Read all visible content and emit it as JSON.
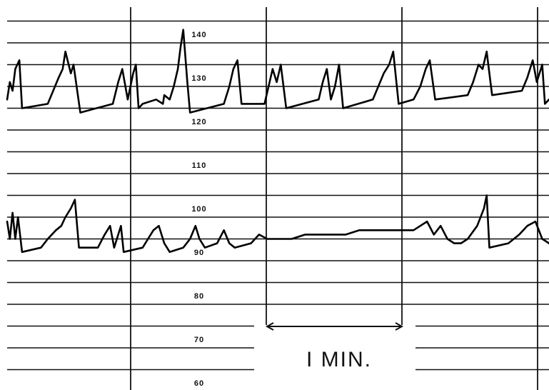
{
  "chart_data": {
    "type": "line",
    "y_tick_labels": [
      "140",
      "130",
      "120",
      "110",
      "100",
      "90",
      "80",
      "70",
      "60"
    ],
    "y_ticks": [
      140,
      130,
      120,
      110,
      100,
      90,
      80,
      70,
      60
    ],
    "ylim": [
      60,
      142
    ],
    "scale_bar": {
      "label": "I MIN.",
      "duration_min": 1
    },
    "series": [
      {
        "points": [
          [
            0.0,
            127
          ],
          [
            0.02,
            131
          ],
          [
            0.04,
            129
          ],
          [
            0.06,
            134
          ],
          [
            0.09,
            136
          ],
          [
            0.11,
            125
          ],
          [
            0.3,
            126
          ],
          [
            0.38,
            132
          ],
          [
            0.41,
            134
          ],
          [
            0.43,
            138
          ],
          [
            0.47,
            133
          ],
          [
            0.49,
            135
          ],
          [
            0.54,
            124
          ],
          [
            0.78,
            126
          ],
          [
            0.82,
            131
          ],
          [
            0.85,
            134
          ],
          [
            0.89,
            127
          ],
          [
            0.93,
            133
          ],
          [
            0.95,
            135
          ],
          [
            0.97,
            125
          ],
          [
            1.0,
            126
          ],
          [
            1.1,
            127
          ],
          [
            1.15,
            126
          ],
          [
            1.16,
            128
          ],
          [
            1.2,
            127
          ],
          [
            1.23,
            130
          ],
          [
            1.26,
            134
          ],
          [
            1.28,
            139
          ],
          [
            1.3,
            143
          ],
          [
            1.33,
            131
          ],
          [
            1.35,
            124
          ],
          [
            1.6,
            126
          ],
          [
            1.64,
            130
          ],
          [
            1.67,
            134
          ],
          [
            1.7,
            136
          ],
          [
            1.73,
            126
          ],
          [
            1.9,
            126
          ],
          [
            1.93,
            130
          ],
          [
            1.96,
            134
          ],
          [
            1.99,
            131
          ],
          [
            2.02,
            135
          ],
          [
            2.06,
            125
          ],
          [
            2.3,
            127
          ],
          [
            2.33,
            131
          ],
          [
            2.36,
            134
          ],
          [
            2.39,
            127
          ],
          [
            2.42,
            130
          ],
          [
            2.45,
            135
          ],
          [
            2.48,
            125
          ],
          [
            2.7,
            127
          ],
          [
            2.74,
            130
          ],
          [
            2.78,
            133
          ],
          [
            2.82,
            135
          ],
          [
            2.85,
            138
          ],
          [
            2.89,
            126
          ],
          [
            3.0,
            127
          ],
          [
            3.05,
            130
          ],
          [
            3.09,
            134
          ],
          [
            3.12,
            136
          ],
          [
            3.16,
            127
          ],
          [
            3.4,
            128
          ],
          [
            3.44,
            131
          ],
          [
            3.48,
            135
          ],
          [
            3.51,
            134
          ],
          [
            3.54,
            138
          ],
          [
            3.58,
            128
          ],
          [
            3.8,
            129
          ],
          [
            3.84,
            132
          ],
          [
            3.88,
            136
          ],
          [
            3.91,
            131
          ],
          [
            3.95,
            135
          ],
          [
            3.97,
            126
          ],
          [
            4.0,
            127
          ]
        ]
      },
      {
        "points": [
          [
            0.0,
            99
          ],
          [
            0.02,
            95
          ],
          [
            0.04,
            101
          ],
          [
            0.06,
            95
          ],
          [
            0.08,
            100
          ],
          [
            0.11,
            92
          ],
          [
            0.25,
            93
          ],
          [
            0.3,
            95
          ],
          [
            0.36,
            97
          ],
          [
            0.4,
            98
          ],
          [
            0.43,
            100
          ],
          [
            0.47,
            102
          ],
          [
            0.5,
            104
          ],
          [
            0.53,
            93
          ],
          [
            0.67,
            93
          ],
          [
            0.72,
            96
          ],
          [
            0.76,
            98
          ],
          [
            0.79,
            93
          ],
          [
            0.84,
            98
          ],
          [
            0.86,
            92
          ],
          [
            1.0,
            93
          ],
          [
            1.04,
            95
          ],
          [
            1.08,
            97
          ],
          [
            1.12,
            98
          ],
          [
            1.16,
            94
          ],
          [
            1.2,
            92
          ],
          [
            1.3,
            93
          ],
          [
            1.35,
            95
          ],
          [
            1.39,
            98
          ],
          [
            1.42,
            95
          ],
          [
            1.46,
            93
          ],
          [
            1.55,
            94
          ],
          [
            1.6,
            97
          ],
          [
            1.64,
            94
          ],
          [
            1.68,
            93
          ],
          [
            1.8,
            94
          ],
          [
            1.86,
            96
          ],
          [
            1.92,
            95
          ],
          [
            2.0,
            95
          ],
          [
            2.1,
            95
          ],
          [
            2.2,
            96
          ],
          [
            2.3,
            96
          ],
          [
            2.4,
            96
          ],
          [
            2.5,
            96
          ],
          [
            2.6,
            97
          ],
          [
            2.7,
            97
          ],
          [
            2.8,
            97
          ],
          [
            2.9,
            97
          ],
          [
            3.0,
            97
          ],
          [
            3.05,
            98
          ],
          [
            3.1,
            99
          ],
          [
            3.15,
            96
          ],
          [
            3.2,
            98
          ],
          [
            3.25,
            95
          ],
          [
            3.3,
            94
          ],
          [
            3.35,
            94
          ],
          [
            3.4,
            95
          ],
          [
            3.47,
            98
          ],
          [
            3.52,
            102
          ],
          [
            3.54,
            105
          ],
          [
            3.56,
            93
          ],
          [
            3.7,
            94
          ],
          [
            3.78,
            96
          ],
          [
            3.84,
            98
          ],
          [
            3.9,
            99
          ],
          [
            3.95,
            95
          ],
          [
            4.0,
            94
          ]
        ]
      }
    ],
    "xlim": [
      0,
      4
    ]
  }
}
